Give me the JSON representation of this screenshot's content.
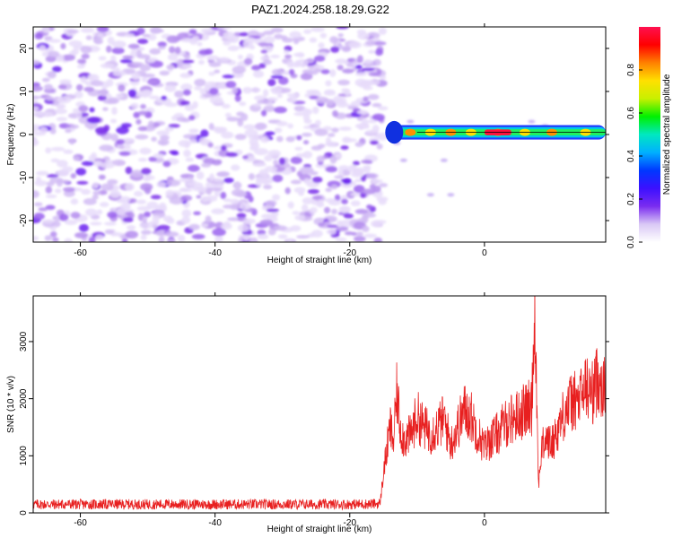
{
  "title": "PAZ1.2024.258.18.29.G22",
  "chart_data": [
    {
      "type": "heatmap",
      "xlabel": "Height of straight line (km)",
      "ylabel": "Frequency (Hz)",
      "xlim": [
        -67,
        18
      ],
      "ylim": [
        -25,
        25
      ],
      "xticks": [
        -60,
        -40,
        -20,
        0
      ],
      "yticks": [
        -20,
        -10,
        0,
        10,
        20
      ],
      "noise_region_x": [
        -67,
        -15
      ],
      "signal_band": {
        "x": [
          -15,
          18
        ],
        "freq_center": 0.5,
        "freq_halfwidth": 1.2,
        "peak_x": [
          0,
          4
        ]
      },
      "colorbar": {
        "label": "Normalized spectral amplitude",
        "range": [
          0.0,
          1.0
        ],
        "ticks": [
          "0.0",
          "0.2",
          "0.4",
          "0.6",
          "0.8"
        ],
        "colors": [
          "#ffffff",
          "#d9c8f5",
          "#7a2cf0",
          "#3c10ff",
          "#0038ff",
          "#00b0ff",
          "#00e8c0",
          "#00f000",
          "#c8f000",
          "#ffe000",
          "#ff8000",
          "#ff0000",
          "#ff1050"
        ]
      }
    },
    {
      "type": "line",
      "xlabel": "Height of straight line (km)",
      "ylabel": "SNR (10 * v/v)",
      "xlim": [
        -67,
        18
      ],
      "ylim": [
        0,
        3800
      ],
      "xticks": [
        -60,
        -40,
        -20,
        0
      ],
      "yticks": [
        0,
        1000,
        2000,
        3000
      ],
      "color": "#e82020",
      "series": [
        {
          "x": [
            -67,
            -60,
            -50,
            -40,
            -30,
            -20,
            -15.5,
            -15,
            -14.5,
            -14,
            -13.5,
            -13,
            -12.5,
            -12,
            -11,
            -10,
            -9,
            -8,
            -7,
            -6,
            -5,
            -4,
            -3,
            -2,
            -1,
            0,
            1,
            2,
            3,
            4,
            5,
            6,
            7,
            7.5,
            8,
            8.5,
            9,
            10,
            11,
            12,
            13,
            14,
            15,
            16,
            17,
            18
          ],
          "y": [
            150,
            150,
            150,
            150,
            150,
            150,
            160,
            700,
            1100,
            1500,
            1250,
            2100,
            1500,
            1300,
            1350,
            1700,
            1500,
            1400,
            1500,
            1650,
            1200,
            1500,
            1800,
            1700,
            1400,
            1150,
            1300,
            1400,
            1550,
            1650,
            1700,
            1800,
            1850,
            3700,
            500,
            1100,
            1300,
            1200,
            1500,
            1800,
            1950,
            1950,
            2200,
            2100,
            2400,
            2100
          ]
        }
      ]
    }
  ]
}
